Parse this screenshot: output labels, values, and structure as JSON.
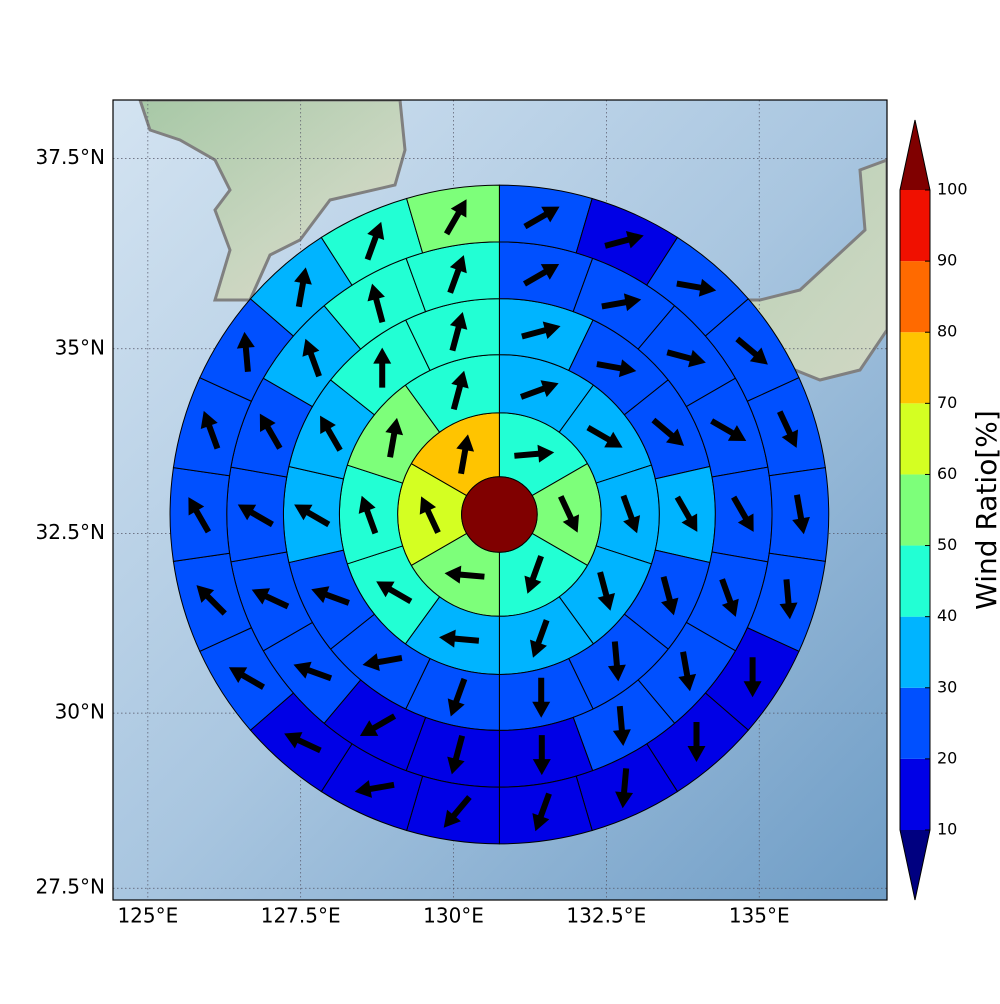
{
  "chart_data": {
    "type": "polar-sector-map",
    "xlim": [
      124.43,
      137.09
    ],
    "ylim": [
      27.33,
      38.25
    ],
    "xticks": [
      {
        "value": 125,
        "label": "125°E"
      },
      {
        "value": 127.5,
        "label": "127.5°E"
      },
      {
        "value": 130,
        "label": "130°E"
      },
      {
        "value": 132.5,
        "label": "132.5°E"
      },
      {
        "value": 135,
        "label": "135°E"
      }
    ],
    "yticks": [
      {
        "value": 27.5,
        "label": "27.5°N"
      },
      {
        "value": 30,
        "label": "30°N"
      },
      {
        "value": 32.5,
        "label": "32.5°N"
      },
      {
        "value": 35,
        "label": "35°N"
      },
      {
        "value": 37.5,
        "label": "37.5°N"
      }
    ],
    "grid": true,
    "center": [
      130.75,
      32.76
    ],
    "ring_radii": [
      0.52,
      1.4,
      2.2,
      2.97,
      3.75,
      4.53
    ],
    "center_value": 105,
    "rings": [
      {
        "values": [
          45,
          55,
          45,
          55,
          65,
          75
        ],
        "directions": [
          85,
          155,
          200,
          275,
          335,
          10
        ]
      },
      {
        "values": [
          35,
          35,
          35,
          35,
          35,
          35,
          45,
          45,
          55,
          45
        ],
        "directions": [
          70,
          120,
          160,
          165,
          200,
          275,
          300,
          340,
          10,
          15
        ]
      },
      {
        "values": [
          35,
          25,
          25,
          35,
          25,
          25,
          25,
          25,
          25,
          25,
          35,
          35,
          45,
          45
        ],
        "directions": [
          75,
          100,
          130,
          150,
          165,
          175,
          180,
          200,
          260,
          290,
          300,
          330,
          0,
          15
        ]
      },
      {
        "values": [
          25,
          25,
          25,
          25,
          25,
          25,
          25,
          25,
          15,
          15,
          15,
          25,
          25,
          25,
          25,
          35,
          45,
          45
        ],
        "directions": [
          60,
          80,
          105,
          120,
          150,
          160,
          170,
          175,
          180,
          195,
          240,
          290,
          295,
          300,
          330,
          340,
          345,
          20
        ]
      },
      {
        "values": [
          25,
          15,
          25,
          25,
          25,
          25,
          25,
          15,
          15,
          15,
          15,
          15,
          15,
          15,
          25,
          25,
          25,
          25,
          25,
          35,
          45,
          55
        ],
        "directions": [
          60,
          75,
          100,
          130,
          155,
          170,
          175,
          180,
          180,
          185,
          200,
          220,
          260,
          295,
          300,
          315,
          330,
          340,
          355,
          10,
          20,
          30
        ]
      }
    ],
    "colorbar": {
      "label": "Wind Ratio[%]",
      "levels": [
        10,
        20,
        30,
        40,
        50,
        60,
        70,
        80,
        90,
        100
      ],
      "colors": [
        "#0000e6",
        "#0050ff",
        "#00b4ff",
        "#22ffd4",
        "#7dff7a",
        "#d4ff22",
        "#ffc400",
        "#ff6a00",
        "#f01000"
      ],
      "under_color": "#000080",
      "over_color": "#800000"
    }
  }
}
